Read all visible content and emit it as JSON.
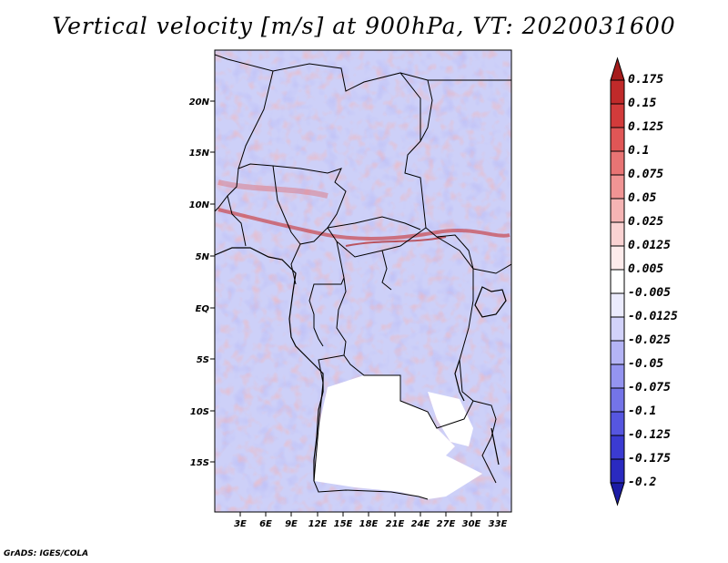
{
  "title": "Vertical velocity [m/s] at 900hPa, VT: 2020031600",
  "credit": "GrADS: IGES/COLA",
  "map": {
    "lat_labels": [
      "20N",
      "15N",
      "10N",
      "5N",
      "EQ",
      "5S",
      "10S",
      "15S"
    ],
    "lon_labels": [
      "3E",
      "6E",
      "9E",
      "12E",
      "15E",
      "18E",
      "21E",
      "24E",
      "27E",
      "30E",
      "33E"
    ]
  },
  "colorbar": {
    "levels": [
      "0.175",
      "0.15",
      "0.125",
      "0.1",
      "0.075",
      "0.05",
      "0.025",
      "0.0125",
      "0.005",
      "-0.005",
      "-0.0125",
      "-0.025",
      "-0.05",
      "-0.075",
      "-0.1",
      "-0.125",
      "-0.175",
      "-0.2"
    ],
    "colors": [
      "#a51c1c",
      "#c02a2a",
      "#d23b3b",
      "#e05656",
      "#e87474",
      "#f09494",
      "#f5b4b4",
      "#fad2d2",
      "#fdebeb",
      "#ffffff",
      "#ebebfd",
      "#d2d2fa",
      "#b4b4f5",
      "#9494f0",
      "#7474e8",
      "#5656e0",
      "#3b3bd2",
      "#2a2ac0",
      "#1c1ca5"
    ]
  }
}
